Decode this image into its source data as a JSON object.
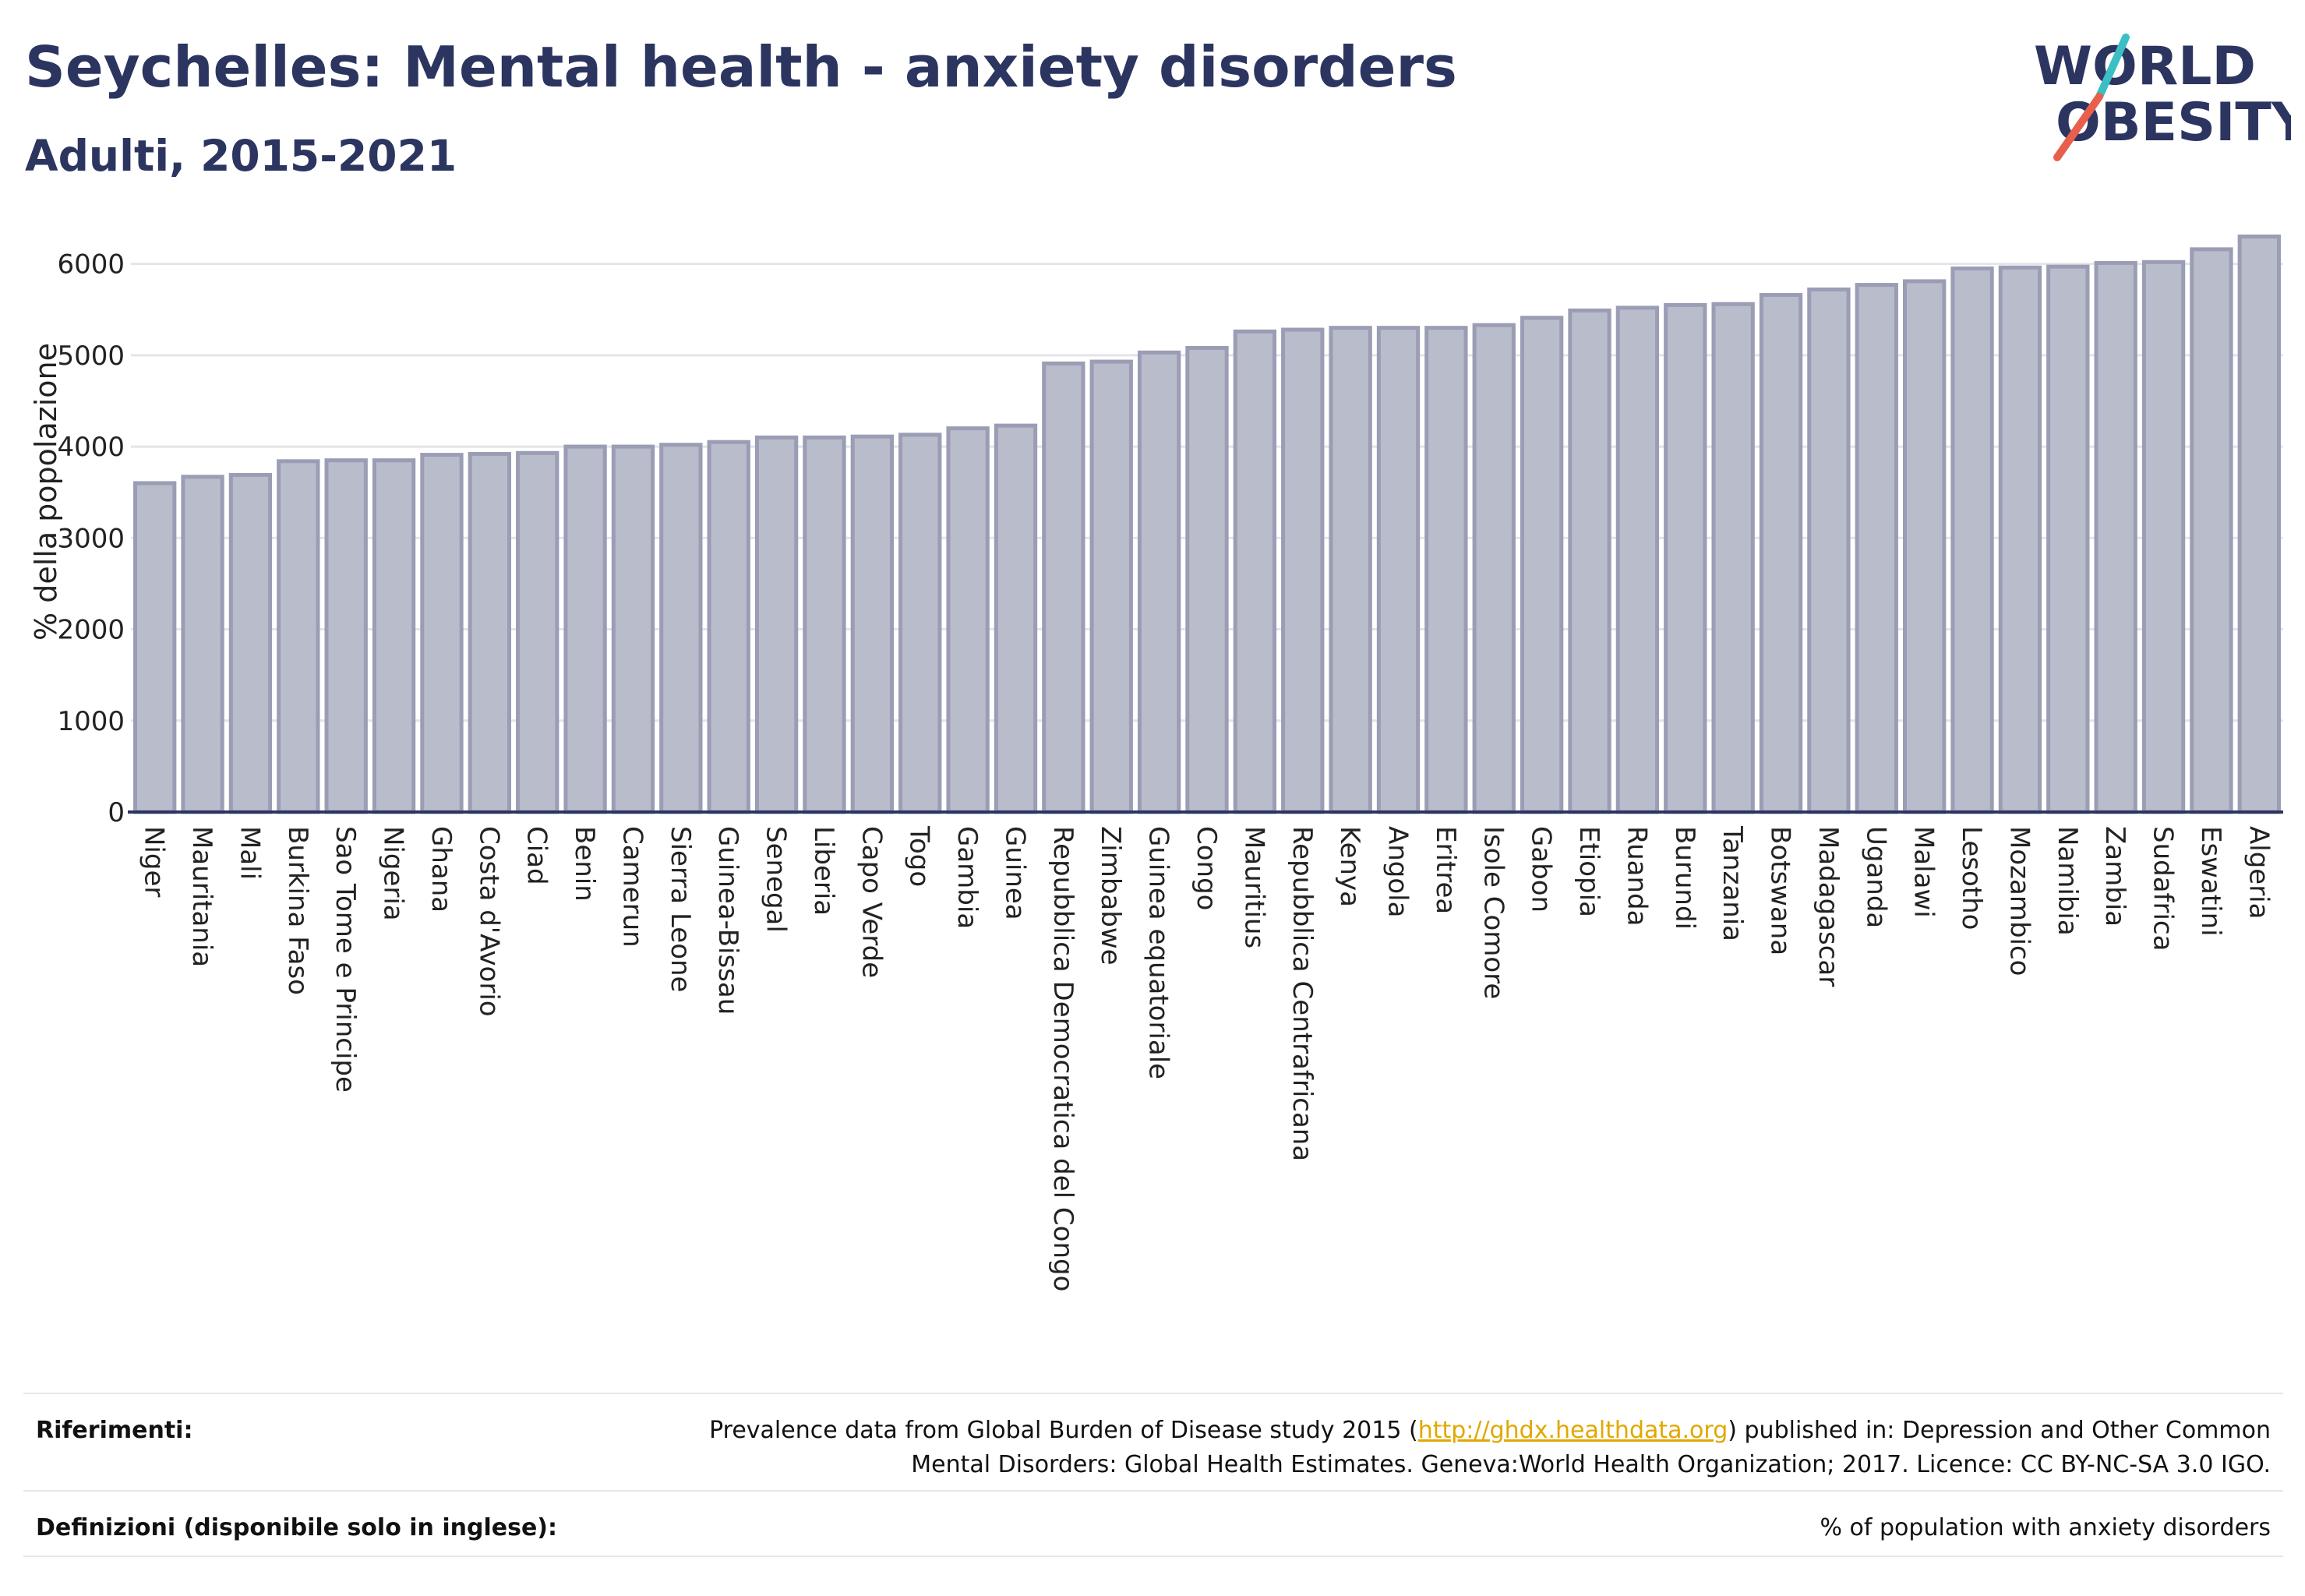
{
  "header": {
    "title": "Seychelles: Mental health - anxiety disorders",
    "subtitle": "Adulti, 2015-2021"
  },
  "logo": {
    "line1": "WORLD",
    "line2": "OBESITY",
    "accent_teal": "#3bbfc4",
    "accent_red": "#e8604c"
  },
  "chart_data": {
    "type": "bar",
    "title": "Seychelles: Mental health - anxiety disorders",
    "subtitle": "Adulti, 2015-2021",
    "ylabel": "% della popolazione",
    "xlabel": "",
    "ylim": [
      0,
      6500
    ],
    "yticks": [
      0,
      1000,
      2000,
      3000,
      4000,
      5000,
      6000
    ],
    "grid": true,
    "bar_color": "#b9bccb",
    "bar_edge_color": "#9a9db4",
    "categories": [
      "Niger",
      "Mauritania",
      "Mali",
      "Burkina Faso",
      "Sao Tome e Principe",
      "Nigeria",
      "Ghana",
      "Costa d'Avorio",
      "Ciad",
      "Benin",
      "Camerun",
      "Sierra Leone",
      "Guinea-Bissau",
      "Senegal",
      "Liberia",
      "Capo Verde",
      "Togo",
      "Gambia",
      "Guinea",
      "Repubblica Democratica del Congo",
      "Zimbabwe",
      "Guinea equatoriale",
      "Congo",
      "Mauritius",
      "Repubblica Centrafricana",
      "Kenya",
      "Angola",
      "Eritrea",
      "Isole Comore",
      "Gabon",
      "Etiopia",
      "Ruanda",
      "Burundi",
      "Tanzania",
      "Botswana",
      "Madagascar",
      "Uganda",
      "Malawi",
      "Lesotho",
      "Mozambico",
      "Namibia",
      "Zambia",
      "Sudafrica",
      "Eswatini",
      "Algeria"
    ],
    "values": [
      3600,
      3670,
      3690,
      3840,
      3850,
      3850,
      3910,
      3920,
      3930,
      4000,
      4000,
      4020,
      4050,
      4100,
      4100,
      4110,
      4130,
      4200,
      4230,
      4910,
      4930,
      5030,
      5080,
      5260,
      5280,
      5300,
      5300,
      5300,
      5330,
      5410,
      5490,
      5520,
      5550,
      5560,
      5660,
      5720,
      5770,
      5810,
      5950,
      5960,
      5970,
      6010,
      6020,
      6160,
      6300
    ]
  },
  "footer": {
    "references_label": "Riferimenti:",
    "references_pre": "Prevalence data from Global Burden of Disease study 2015 (",
    "references_link": "http://ghdx.healthdata.org",
    "references_post": ") published in: Depression and Other Common",
    "references_line2": "Mental Disorders: Global Health Estimates. Geneva:World Health Organization; 2017. Licence: CC BY-NC-SA 3.0 IGO.",
    "definitions_label": "Definizioni (disponibile solo in inglese):",
    "definitions_text": "% of population with anxiety disorders"
  }
}
